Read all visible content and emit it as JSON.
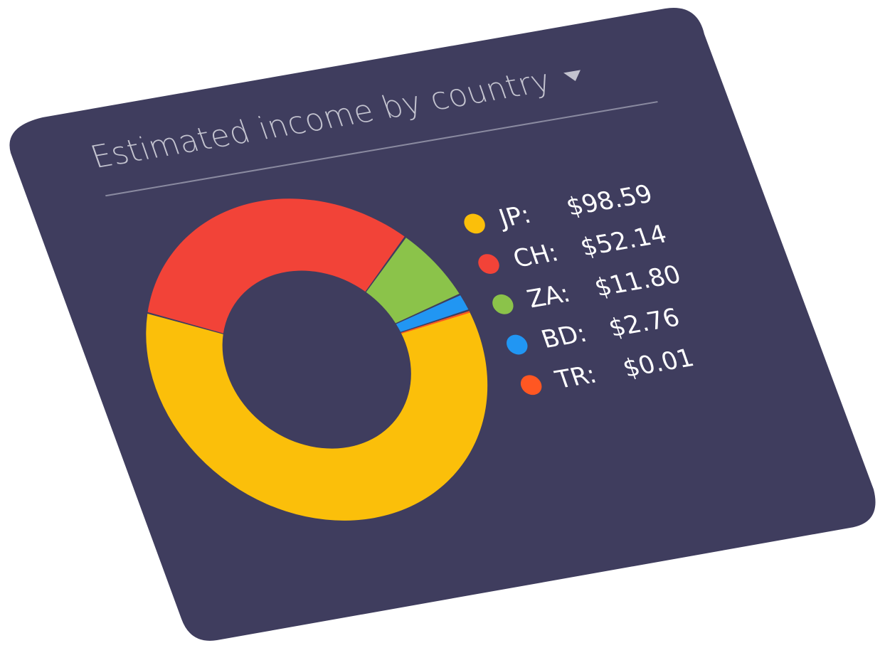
{
  "card": {
    "title": "Estimated income by country",
    "dropdown_icon": "caret-down-icon",
    "background": "#3f3d5e"
  },
  "chart_data": {
    "type": "pie",
    "title": "Estimated income by country",
    "donut": true,
    "legend_position": "right",
    "categories": [
      "JP",
      "CH",
      "ZA",
      "BD",
      "TR"
    ],
    "values": [
      98.59,
      52.14,
      11.8,
      2.76,
      0.01
    ],
    "colors": [
      "#fbbf0a",
      "#f24338",
      "#8bc34a",
      "#2196f3",
      "#ff5722"
    ],
    "legend": [
      {
        "code": "JP:",
        "value": "$98.59",
        "color": "#fbbf0a"
      },
      {
        "code": "CH:",
        "value": "$52.14",
        "color": "#f24338"
      },
      {
        "code": "ZA:",
        "value": "$11.80",
        "color": "#8bc34a"
      },
      {
        "code": "BD:",
        "value": "$2.76",
        "color": "#2196f3"
      },
      {
        "code": "TR:",
        "value": "$0.01",
        "color": "#ff5722"
      }
    ]
  }
}
